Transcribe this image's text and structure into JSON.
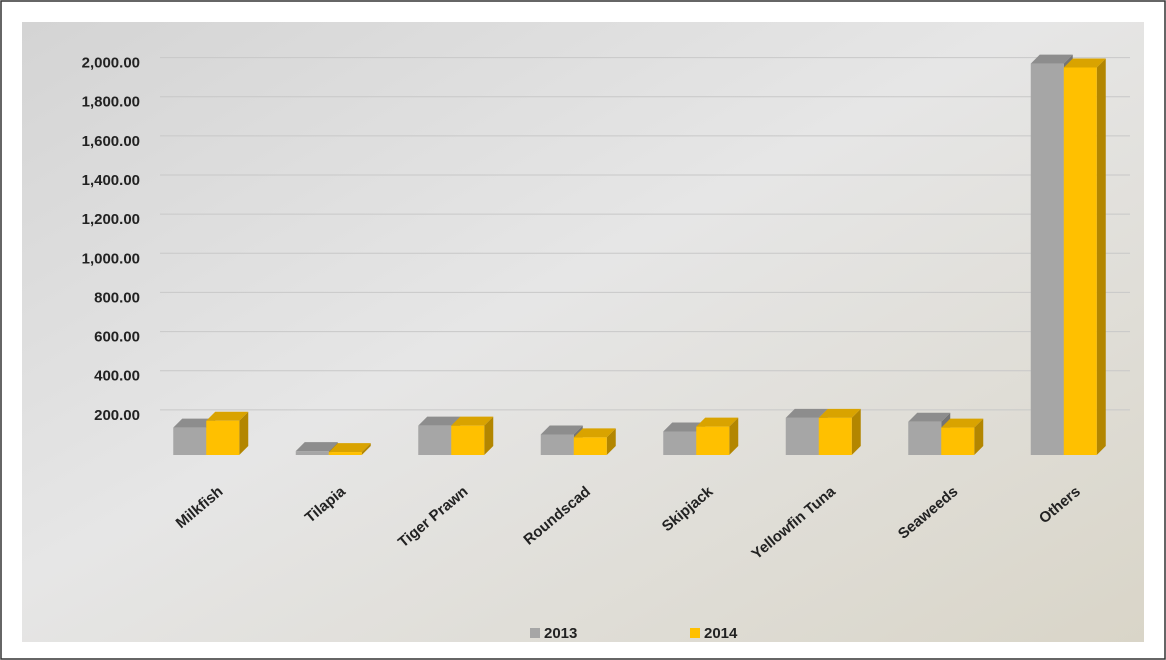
{
  "chart_data": {
    "type": "bar",
    "categories": [
      "Milkfish",
      "Tilapia",
      "Tiger Prawn",
      "Roundscad",
      "Skipjack",
      "Yellowfin Tuna",
      "Seaweeds",
      "Others"
    ],
    "series": [
      {
        "name": "2013",
        "color": "#a6a6a6",
        "values": [
          140,
          20,
          150,
          105,
          120,
          190,
          170,
          2000
        ]
      },
      {
        "name": "2014",
        "color": "#ffc000",
        "values": [
          175,
          15,
          150,
          90,
          145,
          190,
          140,
          1980
        ]
      }
    ],
    "ylim": [
      0,
      2100
    ],
    "yticks": [
      {
        "value": 200,
        "label": "200.00"
      },
      {
        "value": 400,
        "label": "400.00"
      },
      {
        "value": 600,
        "label": "600.00"
      },
      {
        "value": 800,
        "label": "800.00"
      },
      {
        "value": 1000,
        "label": "1,000.00"
      },
      {
        "value": 1200,
        "label": "1,200.00"
      },
      {
        "value": 1400,
        "label": "1,400.00"
      },
      {
        "value": 1600,
        "label": "1,600.00"
      },
      {
        "value": 1800,
        "label": "1,800.00"
      },
      {
        "value": 2000,
        "label": "2,000.00"
      }
    ],
    "grid": true
  }
}
